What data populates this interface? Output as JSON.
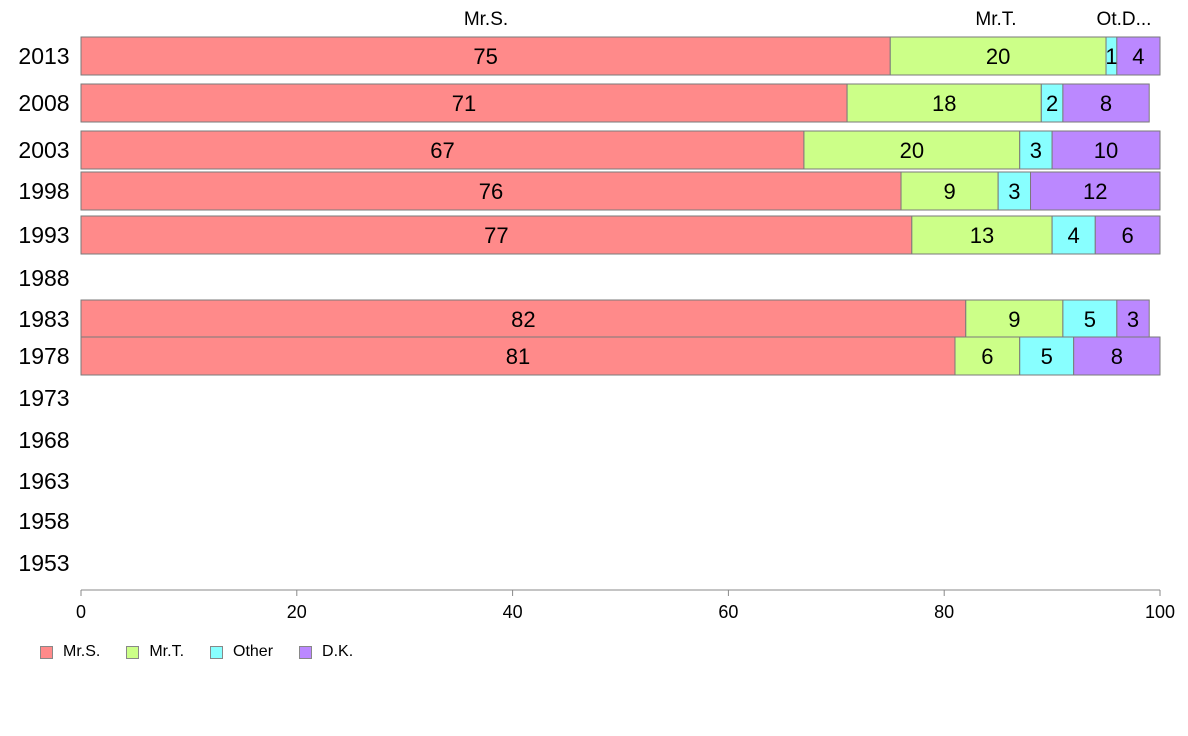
{
  "chart_data": {
    "type": "bar",
    "orientation": "horizontal",
    "stacked": true,
    "categories": [
      "2013",
      "2008",
      "2003",
      "1998",
      "1993",
      "1988",
      "1983",
      "1978",
      "1973",
      "1968",
      "1963",
      "1958",
      "1953"
    ],
    "series": [
      {
        "name": "Mr.S.",
        "color": "#ff8a8a",
        "values": [
          75,
          71,
          67,
          76,
          77,
          null,
          82,
          81,
          null,
          null,
          null,
          null,
          null
        ]
      },
      {
        "name": "Mr.T.",
        "color": "#ccff88",
        "values": [
          20,
          18,
          20,
          9,
          13,
          null,
          9,
          6,
          null,
          null,
          null,
          null,
          null
        ]
      },
      {
        "name": "Other",
        "color": "#88ffff",
        "values": [
          1,
          2,
          3,
          3,
          4,
          null,
          5,
          5,
          null,
          null,
          null,
          null,
          null
        ]
      },
      {
        "name": "D.K.",
        "color": "#bb88ff",
        "values": [
          4,
          8,
          10,
          12,
          6,
          null,
          3,
          8,
          null,
          null,
          null,
          null,
          null
        ]
      }
    ],
    "top_labels": [
      "Mr.S.",
      "Mr.T.",
      "Ot.D..."
    ],
    "xlim": [
      0,
      100
    ],
    "xticks": [
      0,
      20,
      40,
      60,
      80,
      100
    ],
    "legend": [
      "Mr.S.",
      "Mr.T.",
      "Other",
      "D.K."
    ],
    "legend_position": "bottom-left",
    "grid": false
  }
}
